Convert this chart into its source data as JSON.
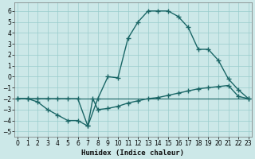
{
  "xlabel": "Humidex (Indice chaleur)",
  "bg_color": "#cce8e8",
  "grid_color": "#99cccc",
  "line_color": "#1a6666",
  "x_ticks": [
    0,
    1,
    2,
    3,
    4,
    5,
    6,
    7,
    8,
    9,
    10,
    11,
    12,
    13,
    14,
    15,
    16,
    17,
    18,
    19,
    20,
    21,
    22,
    23
  ],
  "y_ticks": [
    -5,
    -4,
    -3,
    -2,
    -1,
    0,
    1,
    2,
    3,
    4,
    5,
    6
  ],
  "xlim": [
    -0.3,
    23.3
  ],
  "ylim": [
    -5.5,
    6.8
  ],
  "series": [
    {
      "x": [
        0,
        1,
        2,
        3,
        4,
        5,
        6,
        7,
        8,
        9,
        10,
        11,
        12,
        13,
        14,
        15,
        16,
        17,
        18,
        19,
        20,
        21,
        22,
        23
      ],
      "y": [
        -2,
        -2,
        -2.3,
        -3,
        -3.5,
        -4,
        -4,
        -4.5,
        -2,
        0,
        -0.1,
        3.5,
        5,
        6,
        6,
        6,
        5.5,
        4.5,
        2.5,
        2.5,
        1.5,
        -0.2,
        -1.2,
        -2
      ],
      "marker": "+",
      "markersize": 4,
      "linewidth": 1.0
    },
    {
      "x": [
        0,
        1,
        2,
        3,
        4,
        5,
        6,
        7,
        7.5,
        8,
        9,
        10,
        11,
        12,
        13,
        14,
        15,
        16,
        17,
        18,
        19,
        20,
        21,
        22,
        23
      ],
      "y": [
        -2,
        -2,
        -2,
        -2,
        -2,
        -2,
        -2,
        -4.5,
        -2,
        -3,
        -2.9,
        -2.7,
        -2.4,
        -2.2,
        -2,
        -1.9,
        -1.7,
        -1.5,
        -1.3,
        -1.1,
        -1.0,
        -0.9,
        -0.8,
        -1.8,
        -2
      ],
      "marker": "+",
      "markersize": 4,
      "linewidth": 1.0
    },
    {
      "x": [
        0,
        23
      ],
      "y": [
        -2,
        -2
      ],
      "marker": null,
      "markersize": 0,
      "linewidth": 0.8
    }
  ]
}
